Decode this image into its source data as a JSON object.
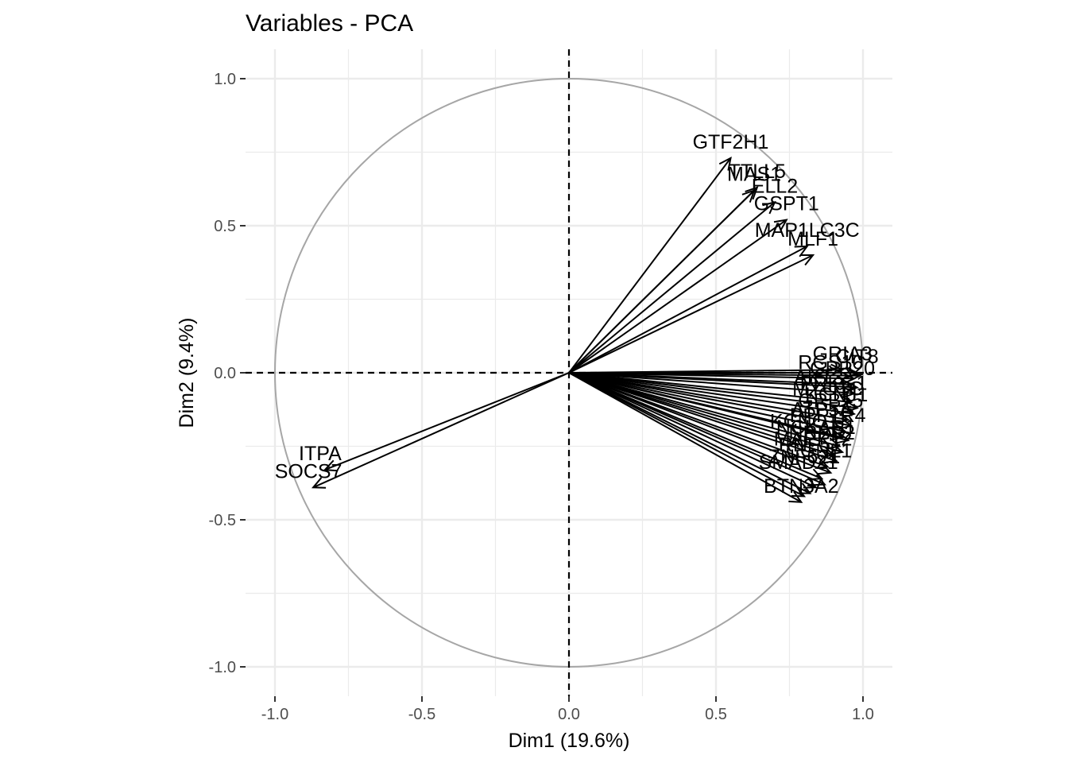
{
  "chart_data": {
    "type": "scatter",
    "subtype": "pca-variable-correlation-circle",
    "title": "Variables - PCA",
    "xlabel": "Dim1 (19.6%)",
    "ylabel": "Dim2 (9.4%)",
    "xlim": [
      -1.1,
      1.1
    ],
    "ylim": [
      -1.1,
      1.1
    ],
    "xticks": [
      -1.0,
      -0.5,
      0.0,
      0.5,
      1.0
    ],
    "xtick_labels": [
      "-1.0",
      "-0.5",
      "0.0",
      "0.5",
      "1.0"
    ],
    "yticks": [
      -1.0,
      -0.5,
      0.0,
      0.5,
      1.0
    ],
    "ytick_labels": [
      "-1.0",
      "-0.5",
      "0.0",
      "0.5",
      "1.0"
    ],
    "grid": true,
    "unit_circle": true,
    "reference_lines": {
      "x": 0,
      "y": 0,
      "style": "dashed"
    },
    "colors": {
      "arrow": "#000000",
      "circle": "#a6a6a6",
      "grid": "#ebebeb",
      "tick_label": "#4d4d4d"
    },
    "labeled_vectors": [
      {
        "label": "GTF2H1",
        "x": 0.55,
        "y": 0.73
      },
      {
        "label": "TTLL5",
        "x": 0.64,
        "y": 0.63
      },
      {
        "label": "MAS1",
        "x": 0.63,
        "y": 0.62
      },
      {
        "label": "ELL2",
        "x": 0.7,
        "y": 0.58
      },
      {
        "label": "GSPT1",
        "x": 0.74,
        "y": 0.52
      },
      {
        "label": "MAP1LC3C",
        "x": 0.81,
        "y": 0.43
      },
      {
        "label": "MLF1",
        "x": 0.83,
        "y": 0.4
      },
      {
        "label": "GRIA3",
        "x": 0.93,
        "y": 0.01
      },
      {
        "label": "ITPA",
        "x": -0.83,
        "y": -0.33
      },
      {
        "label": "SOCS7",
        "x": -0.87,
        "y": -0.39
      },
      {
        "label": "BTN3A2",
        "x": 0.79,
        "y": -0.44
      }
    ],
    "unlabeled_vectors": [
      {
        "x": 0.98,
        "y": 0.0
      },
      {
        "x": 0.99,
        "y": -0.01
      },
      {
        "x": 0.97,
        "y": -0.02
      },
      {
        "x": 0.96,
        "y": -0.04
      },
      {
        "x": 0.98,
        "y": -0.05
      },
      {
        "x": 0.97,
        "y": -0.07
      },
      {
        "x": 0.96,
        "y": -0.1
      },
      {
        "x": 0.98,
        "y": -0.12
      },
      {
        "x": 0.97,
        "y": -0.14
      },
      {
        "x": 0.95,
        "y": -0.16
      },
      {
        "x": 0.96,
        "y": -0.18
      },
      {
        "x": 0.94,
        "y": -0.2
      },
      {
        "x": 0.93,
        "y": -0.22
      },
      {
        "x": 0.95,
        "y": -0.23
      },
      {
        "x": 0.92,
        "y": -0.25
      },
      {
        "x": 0.93,
        "y": -0.27
      },
      {
        "x": 0.9,
        "y": -0.28
      },
      {
        "x": 0.91,
        "y": -0.3
      },
      {
        "x": 0.88,
        "y": -0.32
      },
      {
        "x": 0.89,
        "y": -0.34
      },
      {
        "x": 0.86,
        "y": -0.36
      },
      {
        "x": 0.87,
        "y": -0.38
      },
      {
        "x": 0.84,
        "y": -0.39
      },
      {
        "x": 0.82,
        "y": -0.41
      },
      {
        "x": 0.8,
        "y": -0.42
      }
    ],
    "cluster_labels": [
      {
        "label": "CIT8",
        "x": 0.98,
        "y": 0.0
      },
      {
        "label": "RGS10",
        "x": 0.89,
        "y": -0.02
      },
      {
        "label": "GPR20",
        "x": 0.93,
        "y": -0.04
      },
      {
        "label": "AKT3",
        "x": 0.85,
        "y": -0.07
      },
      {
        "label": "PRKG1",
        "x": 0.9,
        "y": -0.09
      },
      {
        "label": "MYO1C",
        "x": 0.88,
        "y": -0.11
      },
      {
        "label": "KCNJ1",
        "x": 0.91,
        "y": -0.13
      },
      {
        "label": "GRB15",
        "x": 0.89,
        "y": -0.15
      },
      {
        "label": "ATP5A",
        "x": 0.86,
        "y": -0.18
      },
      {
        "label": "PPP1R4",
        "x": 0.88,
        "y": -0.2
      },
      {
        "label": "KCNQ1",
        "x": 0.8,
        "y": -0.22
      },
      {
        "label": "NCKAP1",
        "x": 0.84,
        "y": -0.24
      },
      {
        "label": "NRBP2",
        "x": 0.86,
        "y": -0.26
      },
      {
        "label": "MAPK12",
        "x": 0.83,
        "y": -0.28
      },
      {
        "label": "RNF51",
        "x": 0.82,
        "y": -0.3
      },
      {
        "label": "CGNL1",
        "x": 0.85,
        "y": -0.32
      },
      {
        "label": "ZNF621",
        "x": 0.8,
        "y": -0.34
      },
      {
        "label": "SMAD21",
        "x": 0.78,
        "y": -0.36
      }
    ]
  }
}
